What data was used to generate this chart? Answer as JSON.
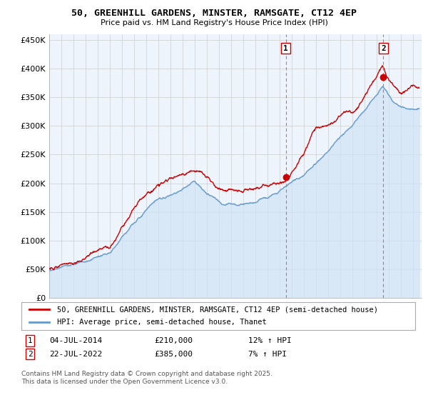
{
  "title1": "50, GREENHILL GARDENS, MINSTER, RAMSGATE, CT12 4EP",
  "title2": "Price paid vs. HM Land Registry's House Price Index (HPI)",
  "red_label": "50, GREENHILL GARDENS, MINSTER, RAMSGATE, CT12 4EP (semi-detached house)",
  "blue_label": "HPI: Average price, semi-detached house, Thanet",
  "annotation1_date": "04-JUL-2014",
  "annotation1_price": "£210,000",
  "annotation1_hpi": "12% ↑ HPI",
  "annotation2_date": "22-JUL-2022",
  "annotation2_price": "£385,000",
  "annotation2_hpi": "7% ↑ HPI",
  "footnote": "Contains HM Land Registry data © Crown copyright and database right 2025.\nThis data is licensed under the Open Government Licence v3.0.",
  "ylim": [
    0,
    460000
  ],
  "yticks": [
    0,
    50000,
    100000,
    150000,
    200000,
    250000,
    300000,
    350000,
    400000,
    450000
  ],
  "marker1_year": 2014.5,
  "marker1_value": 210000,
  "marker2_year": 2022.55,
  "marker2_value": 385000,
  "red_color": "#cc0000",
  "blue_color": "#6699cc",
  "blue_fill_color": "#d0e4f5",
  "vline_color": "#dd6666",
  "grid_color": "#cccccc",
  "bg_color": "#ffffff",
  "plot_bg_color": "#eef4fb"
}
